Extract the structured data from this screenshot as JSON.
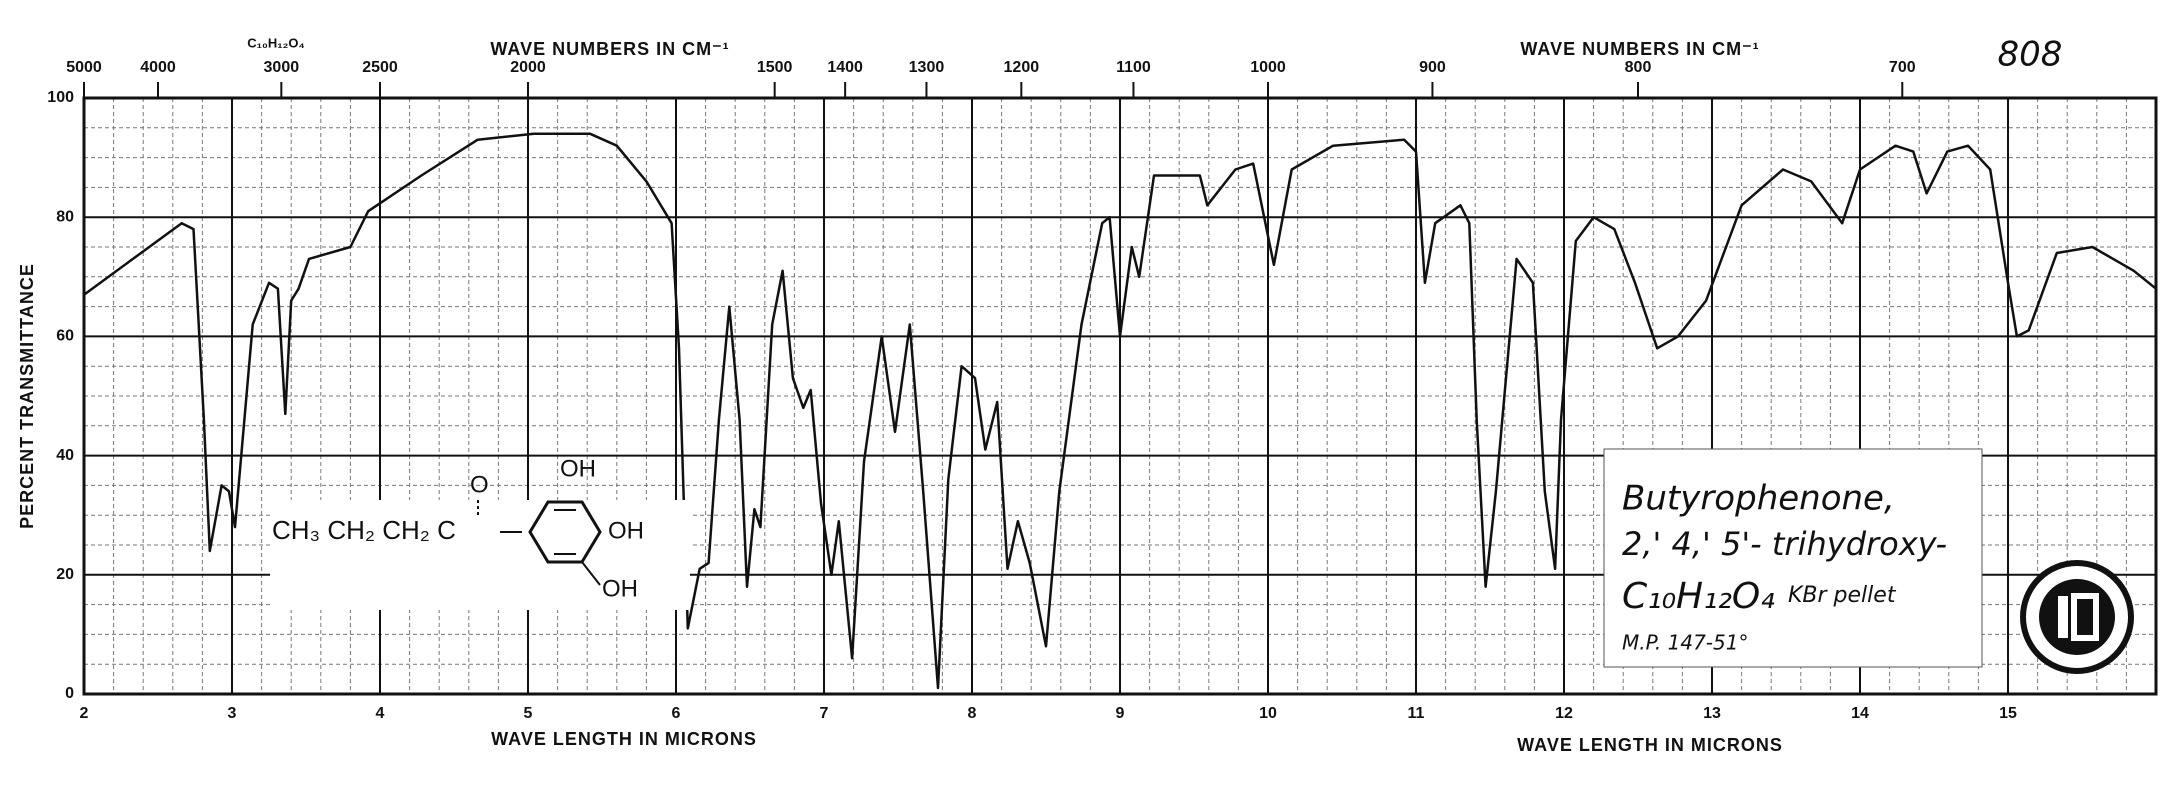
{
  "chart_data": {
    "type": "line",
    "color": "#111111",
    "x": [
      2.0,
      2.66,
      2.74,
      2.81,
      2.85,
      2.93,
      2.98,
      3.02,
      3.14,
      3.25,
      3.31,
      3.36,
      3.4,
      3.45,
      3.52,
      3.8,
      3.92,
      4.28,
      4.66,
      5.04,
      5.42,
      5.6,
      5.8,
      5.97,
      6.02,
      6.08,
      6.16,
      6.22,
      6.29,
      6.36,
      6.43,
      6.48,
      6.53,
      6.57,
      6.65,
      6.72,
      6.79,
      6.86,
      6.91,
      6.98,
      7.05,
      7.1,
      7.19,
      7.27,
      7.39,
      7.48,
      7.58,
      7.67,
      7.77,
      7.84,
      7.93,
      8.02,
      8.09,
      8.17,
      8.24,
      8.31,
      8.39,
      8.5,
      8.59,
      8.74,
      8.88,
      8.93,
      9.0,
      9.08,
      9.13,
      9.23,
      9.54,
      9.59,
      9.78,
      9.9,
      10.04,
      10.16,
      10.44,
      10.92,
      11.0,
      11.06,
      11.13,
      11.3,
      11.36,
      11.41,
      11.47,
      11.54,
      11.68,
      11.79,
      11.87,
      11.94,
      11.98,
      12.08,
      12.2,
      12.34,
      12.48,
      12.63,
      12.77,
      12.96,
      13.2,
      13.48,
      13.67,
      13.88,
      14.0,
      14.24,
      14.36,
      14.45,
      14.59,
      14.73,
      14.88,
      15.0,
      15.06,
      15.14,
      15.33,
      15.57,
      15.85,
      16.0
    ],
    "values": [
      67,
      79,
      78,
      46,
      24,
      35,
      34,
      28,
      62,
      69,
      68,
      47,
      66,
      68,
      73,
      75,
      81,
      87,
      93,
      94,
      94,
      92,
      86,
      79,
      58,
      11,
      21,
      22,
      46,
      65,
      46,
      18,
      31,
      28,
      62,
      71,
      53,
      48,
      51,
      32,
      20,
      29,
      6,
      39,
      60,
      44,
      62,
      34,
      1,
      36,
      55,
      53,
      41,
      49,
      21,
      29,
      22,
      8,
      34,
      62,
      79,
      80,
      60,
      75,
      70,
      87,
      87,
      82,
      88,
      89,
      72,
      88,
      92,
      93,
      91,
      69,
      79,
      82,
      79,
      46,
      18,
      34,
      73,
      69,
      34,
      21,
      46,
      76,
      80,
      78,
      69,
      58,
      60,
      66,
      82,
      88,
      86,
      79,
      88,
      92,
      91,
      84,
      91,
      92,
      88,
      69,
      60,
      61,
      74,
      75,
      71,
      68
    ],
    "xlim": [
      2,
      16
    ],
    "xticks": [
      2,
      3,
      4,
      5,
      6,
      7,
      8,
      9,
      10,
      11,
      12,
      13,
      14,
      15
    ],
    "ylim": [
      0,
      100
    ],
    "yticks": [
      0,
      20,
      40,
      60,
      80,
      100
    ],
    "x2ticks": [
      5000,
      4000,
      3000,
      2500,
      2000,
      1500,
      1400,
      1300,
      1200,
      1100,
      1000,
      900,
      800,
      700
    ],
    "x_labels": [
      "WAVE LENGTH IN MICRONS",
      "WAVE LENGTH IN MICRONS"
    ],
    "x2_labels": [
      "WAVE NUMBERS IN CM⁻¹",
      "WAVE NUMBERS IN CM⁻¹"
    ],
    "y_label": "PERCENT TRANSMITTANCE",
    "grid": true,
    "annotations": {
      "page_number": "808",
      "top_formula": "C₁₀H₁₂O₄",
      "structure_chain": "CH₃ CH₂ CH₂ C",
      "structure_oxygen": "O",
      "structure_oh_top": "OH",
      "structure_oh_right": "OH",
      "structure_oh_bottom": "OH",
      "sample_name": "Butyrophenone,",
      "sample_substituents": "2,' 4,' 5'- trihydroxy-",
      "sample_formula": "C₁₀H₁₂O₄",
      "sample_medium": "KBr pellet",
      "melting_point": "M.P. 147-51°"
    }
  }
}
